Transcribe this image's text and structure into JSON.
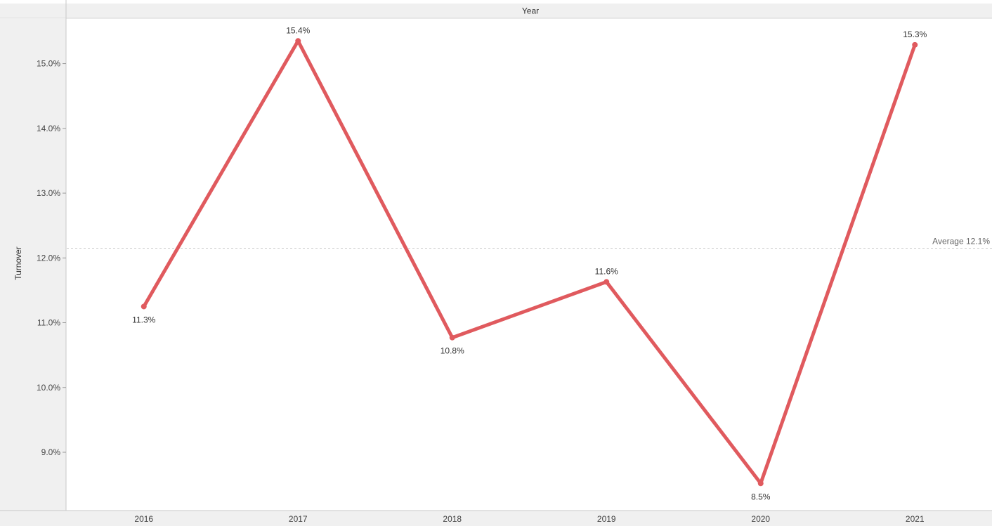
{
  "chart_data": {
    "type": "line",
    "column_header": "Year",
    "ylabel": "Turnover",
    "categories": [
      "2016",
      "2017",
      "2018",
      "2019",
      "2020",
      "2021"
    ],
    "values": [
      11.25,
      15.35,
      10.77,
      11.63,
      8.52,
      15.29
    ],
    "data_labels": [
      "11.3%",
      "15.4%",
      "10.8%",
      "11.6%",
      "8.5%",
      "15.3%"
    ],
    "label_position": [
      "below",
      "above",
      "below",
      "above",
      "below",
      "above"
    ],
    "ylim": [
      8.1,
      15.7
    ],
    "yticks": [
      9,
      10,
      11,
      12,
      13,
      14,
      15
    ],
    "ytick_labels": [
      "9.0%",
      "10.0%",
      "11.0%",
      "12.0%",
      "13.0%",
      "14.0%",
      "15.0%"
    ],
    "reference_line": {
      "value": 12.15,
      "label": "Average 12.1%"
    },
    "series_color": "#e05a5e",
    "grid": false
  }
}
